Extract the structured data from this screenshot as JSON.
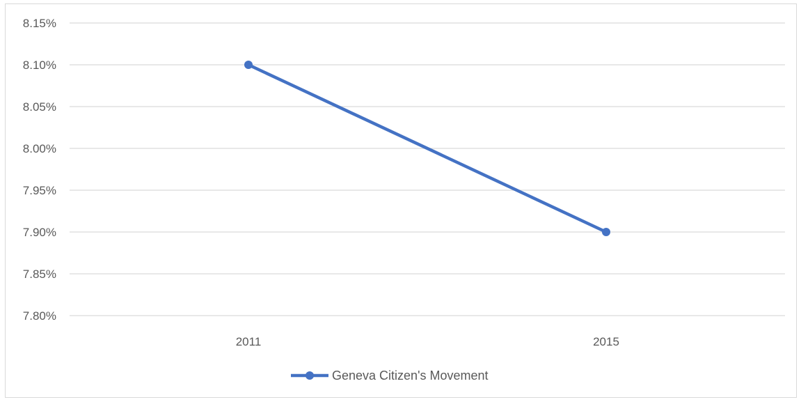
{
  "chart_data": {
    "type": "line",
    "categories": [
      "2011",
      "2015"
    ],
    "series": [
      {
        "name": "Geneva Citizen's Movement",
        "values": [
          8.1,
          7.9
        ],
        "color": "#4472c4"
      }
    ],
    "y_tick_labels": [
      "8.15%",
      "8.10%",
      "8.05%",
      "8.00%",
      "7.95%",
      "7.90%",
      "7.85%",
      "7.80%"
    ],
    "ylim": [
      7.8,
      8.15
    ],
    "y_step": 0.05,
    "grid": true,
    "legend_position": "bottom"
  }
}
